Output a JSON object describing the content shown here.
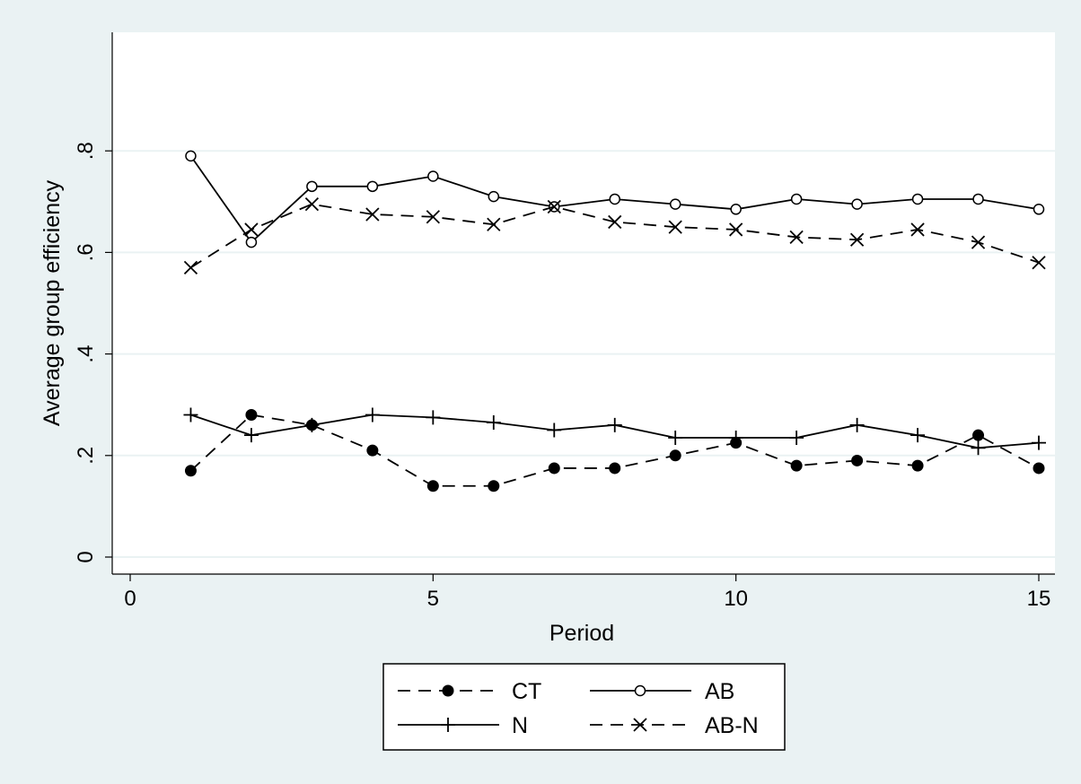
{
  "chart_data": {
    "type": "line",
    "title": "",
    "xlabel": "Period",
    "ylabel": "Average group efficiency",
    "xlim": [
      0,
      15
    ],
    "ylim": [
      0,
      1
    ],
    "xticks": [
      0,
      5,
      10,
      15
    ],
    "xtick_labels": [
      "0",
      "5",
      "10",
      "15"
    ],
    "yticks": [
      0,
      0.2,
      0.4,
      0.6,
      0.8
    ],
    "ytick_labels": [
      "0",
      ".2",
      ".4",
      ".6",
      ".8"
    ],
    "grid": true,
    "legend_position": "bottom",
    "x": [
      1,
      2,
      3,
      4,
      5,
      6,
      7,
      8,
      9,
      10,
      11,
      12,
      13,
      14,
      15
    ],
    "series": [
      {
        "name": "CT",
        "line": "dashed",
        "marker": "filled-circle",
        "values": [
          0.17,
          0.28,
          0.26,
          0.21,
          0.14,
          0.14,
          0.175,
          0.175,
          0.2,
          0.225,
          0.18,
          0.19,
          0.18,
          0.24,
          0.175
        ]
      },
      {
        "name": "AB",
        "line": "solid",
        "marker": "hollow-circle",
        "values": [
          0.79,
          0.62,
          0.73,
          0.73,
          0.75,
          0.71,
          0.69,
          0.705,
          0.695,
          0.685,
          0.705,
          0.695,
          0.705,
          0.705,
          0.685
        ]
      },
      {
        "name": "N",
        "line": "solid",
        "marker": "plus",
        "values": [
          0.28,
          0.24,
          0.26,
          0.28,
          0.275,
          0.265,
          0.25,
          0.26,
          0.235,
          0.235,
          0.235,
          0.26,
          0.24,
          0.215,
          0.225
        ]
      },
      {
        "name": "AB-N",
        "line": "dashed",
        "marker": "x",
        "values": [
          0.57,
          0.645,
          0.695,
          0.675,
          0.67,
          0.655,
          0.69,
          0.66,
          0.65,
          0.645,
          0.63,
          0.625,
          0.645,
          0.62,
          0.58
        ]
      }
    ],
    "colors": {
      "background": "#eaf2f3",
      "plot_background": "#ffffff",
      "gridline": "#eaf2f3",
      "line": "#000000"
    }
  }
}
